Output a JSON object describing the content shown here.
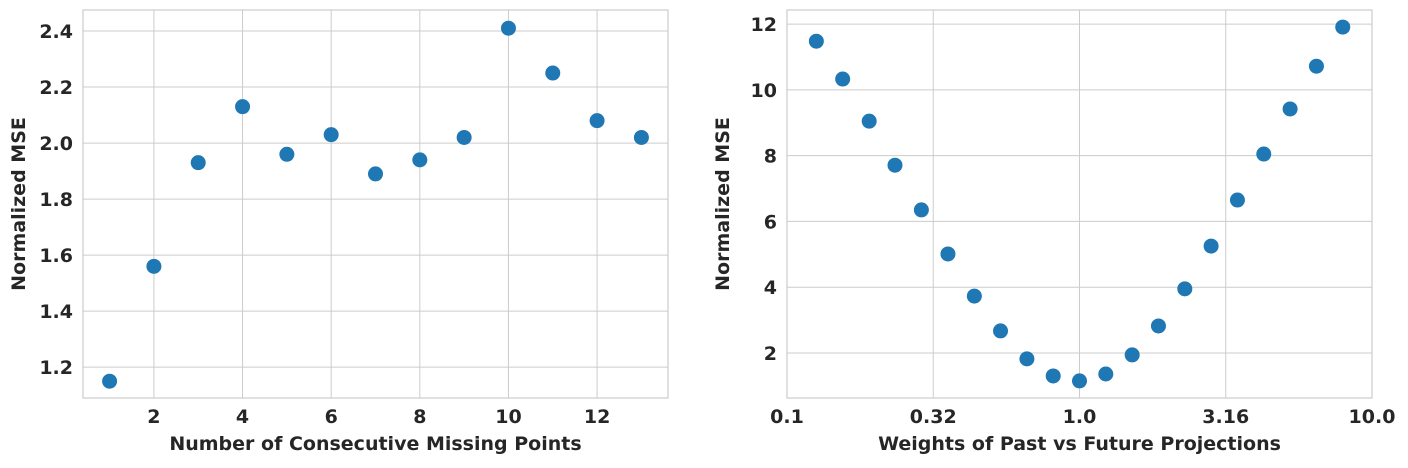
{
  "chart_data": [
    {
      "type": "scatter",
      "xlabel": "Number of Consecutive Missing Points",
      "ylabel": "Normalized MSE",
      "color": "#1f77b4",
      "grid": true,
      "xscale": "linear",
      "x": [
        1,
        2,
        3,
        4,
        5,
        6,
        7,
        8,
        9,
        10,
        11,
        12,
        13
      ],
      "values": [
        1.15,
        1.56,
        1.93,
        2.13,
        1.96,
        2.03,
        1.89,
        1.94,
        2.02,
        2.41,
        2.25,
        2.08,
        2.02
      ],
      "xlim": [
        0.4,
        13.6
      ],
      "xticks": [
        2,
        4,
        6,
        8,
        10,
        12
      ],
      "ylim": [
        1.09,
        2.475
      ],
      "yticks": [
        {
          "value": 1.2,
          "label": "1.2"
        },
        {
          "value": 1.4,
          "label": "1.4"
        },
        {
          "value": 1.6,
          "label": "1.6"
        },
        {
          "value": 1.8,
          "label": "1.8"
        },
        {
          "value": 2.0,
          "label": "2.0"
        },
        {
          "value": 2.2,
          "label": "2.2"
        },
        {
          "value": 2.4,
          "label": "2.4"
        }
      ]
    },
    {
      "type": "scatter",
      "xlabel": "Weights of Past vs Future Projections",
      "ylabel": "Normalized MSE",
      "color": "#1f77b4",
      "grid": true,
      "xscale": "log",
      "x": [
        0.126,
        0.155,
        0.191,
        0.234,
        0.288,
        0.355,
        0.437,
        0.537,
        0.661,
        0.813,
        1.0,
        1.23,
        1.514,
        1.862,
        2.291,
        2.818,
        3.467,
        4.266,
        5.248,
        6.457,
        7.943
      ],
      "values": [
        11.48,
        10.33,
        9.05,
        7.71,
        6.35,
        5.01,
        3.73,
        2.67,
        1.82,
        1.3,
        1.15,
        1.36,
        1.94,
        2.82,
        3.95,
        5.25,
        6.65,
        8.05,
        9.42,
        10.72,
        11.91
      ],
      "xlim": [
        0.1,
        10
      ],
      "xticks": [
        0.1,
        {
          "value": 0.3162,
          "label": "0.32"
        },
        {
          "value": 1,
          "label": "1.0"
        },
        {
          "value": 3.162,
          "label": "3.16"
        },
        {
          "value": 10,
          "label": "10.0"
        }
      ],
      "ylim": [
        0.63,
        12.43
      ],
      "yticks": [
        2,
        4,
        6,
        8,
        10,
        12
      ]
    }
  ]
}
